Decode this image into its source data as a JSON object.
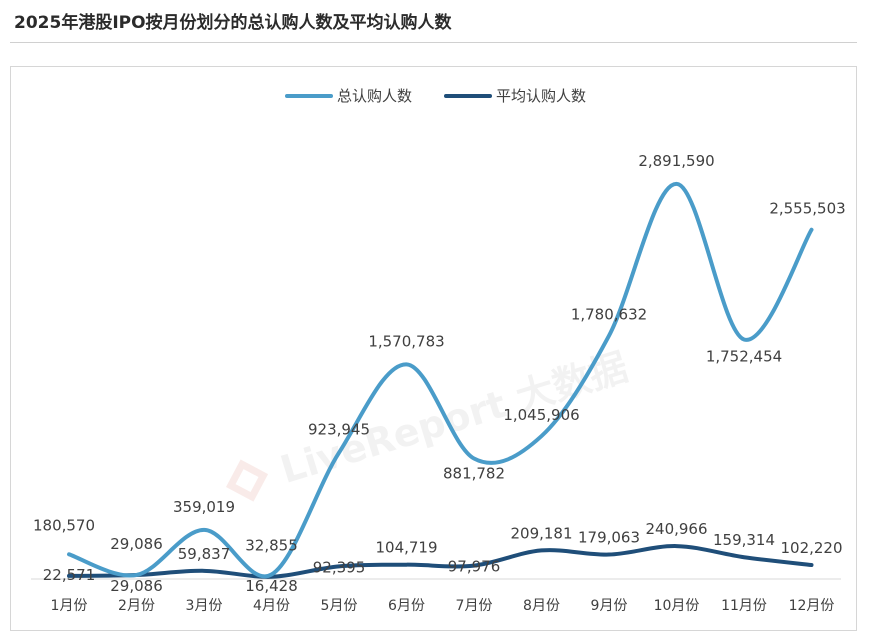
{
  "header": {
    "title": "2025年港股IPO按月份划分的总认购人数及平均认购人数"
  },
  "watermark": {
    "text": "LiveReport 大数据",
    "color": "#c0392b"
  },
  "chart_data": {
    "type": "line",
    "title": "2025年港股IPO按月份划分的总认购人数及平均认购人数",
    "xlabel": "",
    "ylabel": "",
    "categories": [
      "1月份",
      "2月份",
      "3月份",
      "4月份",
      "5月份",
      "6月份",
      "7月份",
      "8月份",
      "9月份",
      "10月份",
      "11月份",
      "12月份"
    ],
    "series": [
      {
        "name": "总认购人数",
        "color": "#4a9cc9",
        "values": [
          180570,
          29086,
          359019,
          32855,
          923945,
          1570783,
          881782,
          1045906,
          1780632,
          2891590,
          1752454,
          2555503
        ],
        "labels": [
          "180,570",
          "29,086",
          "359,019",
          "32,855",
          "923,945",
          "1,570,783",
          "881,782",
          "1,045,906",
          "1,780,632",
          "2,891,590",
          "1,752,454",
          "2,555,503"
        ]
      },
      {
        "name": "平均认购人数",
        "color": "#1f4e79",
        "values": [
          22571,
          29086,
          59837,
          16428,
          92395,
          104719,
          97976,
          209181,
          179063,
          240966,
          159314,
          102220
        ],
        "labels": [
          "22,571",
          "29,086",
          "59,837",
          "16,428",
          "92,395",
          "104,719",
          "97,976",
          "209,181",
          "179,063",
          "240,966",
          "159,314",
          "102,220"
        ]
      }
    ],
    "ylim": [
      0,
      3000000
    ],
    "grid": false,
    "legend_position": "top"
  }
}
